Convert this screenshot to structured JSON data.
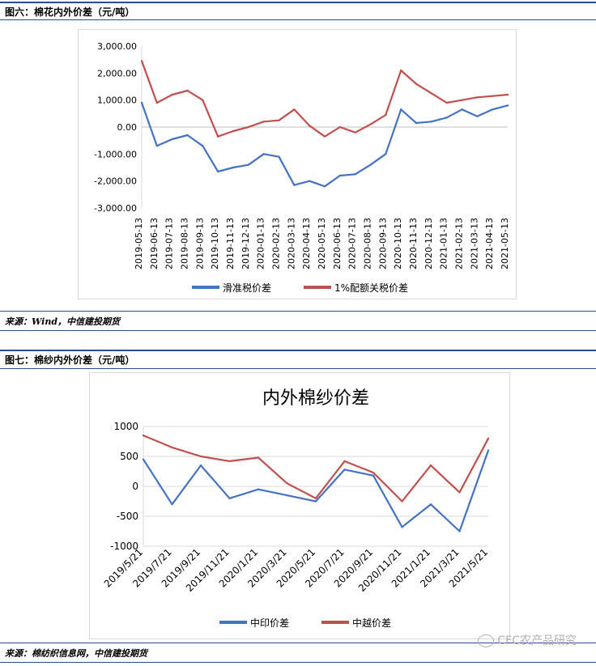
{
  "figure6": {
    "header": "图六：棉花内外价差（元/吨）",
    "source": "来源：Wind，中信建投期货"
  },
  "figure7": {
    "header": "图七：棉纱内外价差（元/吨）",
    "source": "来源：棉纺织信息网，中信建投期货"
  },
  "watermark": "CFC农产品研究",
  "colors": {
    "blue": "#4472c4",
    "red": "#c0504d",
    "rule": "#2a4e92"
  },
  "chart_data": [
    {
      "type": "line",
      "title": "",
      "ylim": [
        -3000,
        3000
      ],
      "yticks": [
        "3,000.00",
        "2,000.00",
        "1,000.00",
        "0.00",
        "-1,000.00",
        "-2,000.00",
        "-3,000.00"
      ],
      "ytick_values": [
        3000,
        2000,
        1000,
        0,
        -1000,
        -2000,
        -3000
      ],
      "categories": [
        "2019-05-13",
        "2019-06-13",
        "2019-07-13",
        "2019-08-13",
        "2019-09-13",
        "2019-10-13",
        "2019-11-13",
        "2019-12-13",
        "2020-01-13",
        "2020-02-13",
        "2020-03-13",
        "2020-04-13",
        "2020-05-13",
        "2020-06-13",
        "2020-07-13",
        "2020-08-13",
        "2020-09-13",
        "2020-10-13",
        "2020-11-13",
        "2020-12-13",
        "2021-01-13",
        "2021-02-13",
        "2021-03-13",
        "2021-04-13",
        "2021-05-13"
      ],
      "grid": false,
      "legend": "bottom",
      "series": [
        {
          "name": "滑准税价差",
          "color": "#4472c4",
          "values": [
            900,
            -700,
            -450,
            -300,
            -700,
            -1650,
            -1500,
            -1400,
            -1000,
            -1100,
            -2150,
            -2000,
            -2200,
            -1800,
            -1750,
            -1400,
            -1000,
            650,
            150,
            200,
            350,
            650,
            400,
            650,
            800
          ]
        },
        {
          "name": "1%配额关税价差",
          "color": "#c0504d",
          "values": [
            2450,
            900,
            1200,
            1350,
            1000,
            -350,
            -150,
            0,
            200,
            250,
            650,
            50,
            -350,
            0,
            -200,
            100,
            450,
            2100,
            1600,
            1250,
            900,
            1000,
            1100,
            1150,
            1200
          ]
        }
      ]
    },
    {
      "type": "line",
      "title": "内外棉纱价差",
      "ylim": [
        -1000,
        1000
      ],
      "yticks": [
        "1000",
        "500",
        "0",
        "-500",
        "-1000"
      ],
      "ytick_values": [
        1000,
        500,
        0,
        -500,
        -1000
      ],
      "categories": [
        "2019/5/21",
        "2019/7/21",
        "2019/9/21",
        "2019/11/21",
        "2020/1/21",
        "2020/3/21",
        "2020/5/21",
        "2020/7/21",
        "2020/9/21",
        "2020/11/21",
        "2021/1/21",
        "2021/3/21",
        "2021/5/21"
      ],
      "grid": true,
      "legend": "bottom",
      "series": [
        {
          "name": "中印价差",
          "color": "#4472c4",
          "values": [
            450,
            -300,
            350,
            -200,
            -50,
            -150,
            -250,
            280,
            180,
            -680,
            -300,
            -750,
            600
          ]
        },
        {
          "name": "中越价差",
          "color": "#c0504d",
          "values": [
            850,
            650,
            500,
            420,
            480,
            50,
            -200,
            420,
            230,
            -250,
            350,
            -100,
            800
          ]
        }
      ]
    }
  ]
}
